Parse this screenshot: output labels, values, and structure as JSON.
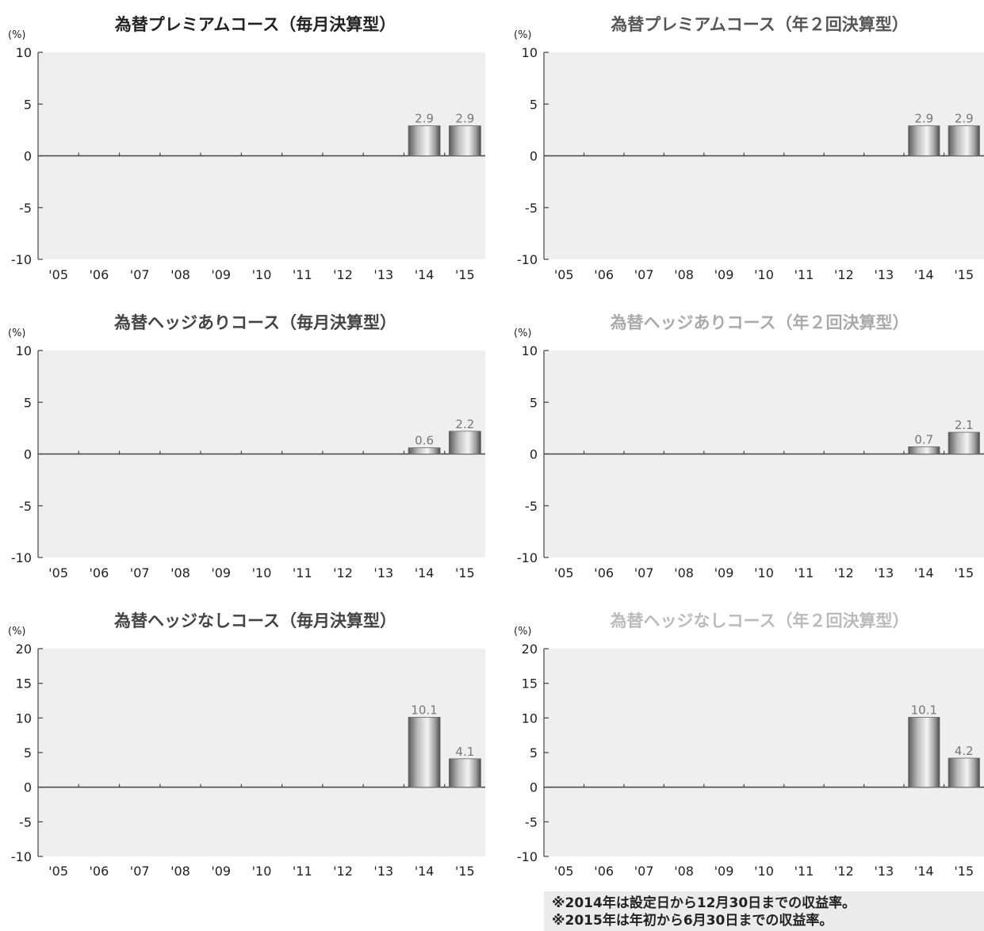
{
  "chart_data": [
    {
      "type": "bar",
      "title": "為替プレミアムコース（毎月決算型）",
      "ylabel": "(%)",
      "categories": [
        "'05",
        "'06",
        "'07",
        "'08",
        "'09",
        "'10",
        "'11",
        "'12",
        "'13",
        "'14",
        "'15"
      ],
      "values": [
        null,
        null,
        null,
        null,
        null,
        null,
        null,
        null,
        null,
        2.9,
        2.9
      ],
      "value_labels": [
        "",
        "",
        "",
        "",
        "",
        "",
        "",
        "",
        "",
        "2.9",
        "2.9"
      ],
      "ylim": [
        -10,
        10
      ],
      "yticks": [
        10,
        5,
        0,
        -5,
        -10
      ],
      "title_color": "#222222"
    },
    {
      "type": "bar",
      "title": "為替プレミアムコース（年２回決算型）",
      "ylabel": "(%)",
      "categories": [
        "'05",
        "'06",
        "'07",
        "'08",
        "'09",
        "'10",
        "'11",
        "'12",
        "'13",
        "'14",
        "'15"
      ],
      "values": [
        null,
        null,
        null,
        null,
        null,
        null,
        null,
        null,
        null,
        2.9,
        2.9
      ],
      "value_labels": [
        "",
        "",
        "",
        "",
        "",
        "",
        "",
        "",
        "",
        "2.9",
        "2.9"
      ],
      "ylim": [
        -10,
        10
      ],
      "yticks": [
        10,
        5,
        0,
        -5,
        -10
      ],
      "title_color": "#555555"
    },
    {
      "type": "bar",
      "title": "為替ヘッジありコース（毎月決算型）",
      "ylabel": "(%)",
      "categories": [
        "'05",
        "'06",
        "'07",
        "'08",
        "'09",
        "'10",
        "'11",
        "'12",
        "'13",
        "'14",
        "'15"
      ],
      "values": [
        null,
        null,
        null,
        null,
        null,
        null,
        null,
        null,
        null,
        0.6,
        2.2
      ],
      "value_labels": [
        "",
        "",
        "",
        "",
        "",
        "",
        "",
        "",
        "",
        "0.6",
        "2.2"
      ],
      "ylim": [
        -10,
        10
      ],
      "yticks": [
        10,
        5,
        0,
        -5,
        -10
      ],
      "title_color": "#444444"
    },
    {
      "type": "bar",
      "title": "為替ヘッジありコース（年２回決算型）",
      "ylabel": "(%)",
      "categories": [
        "'05",
        "'06",
        "'07",
        "'08",
        "'09",
        "'10",
        "'11",
        "'12",
        "'13",
        "'14",
        "'15"
      ],
      "values": [
        null,
        null,
        null,
        null,
        null,
        null,
        null,
        null,
        null,
        0.7,
        2.1
      ],
      "value_labels": [
        "",
        "",
        "",
        "",
        "",
        "",
        "",
        "",
        "",
        "0.7",
        "2.1"
      ],
      "ylim": [
        -10,
        10
      ],
      "yticks": [
        10,
        5,
        0,
        -5,
        -10
      ],
      "title_color": "#aaaaaa"
    },
    {
      "type": "bar",
      "title": "為替ヘッジなしコース（毎月決算型）",
      "ylabel": "(%)",
      "categories": [
        "'05",
        "'06",
        "'07",
        "'08",
        "'09",
        "'10",
        "'11",
        "'12",
        "'13",
        "'14",
        "'15"
      ],
      "values": [
        null,
        null,
        null,
        null,
        null,
        null,
        null,
        null,
        null,
        10.1,
        4.1
      ],
      "value_labels": [
        "",
        "",
        "",
        "",
        "",
        "",
        "",
        "",
        "",
        "10.1",
        "4.1"
      ],
      "ylim": [
        -10,
        20
      ],
      "yticks": [
        20,
        15,
        10,
        5,
        0,
        -5,
        -10
      ],
      "title_color": "#444444"
    },
    {
      "type": "bar",
      "title": "為替ヘッジなしコース（年２回決算型）",
      "ylabel": "(%)",
      "categories": [
        "'05",
        "'06",
        "'07",
        "'08",
        "'09",
        "'10",
        "'11",
        "'12",
        "'13",
        "'14",
        "'15"
      ],
      "values": [
        null,
        null,
        null,
        null,
        null,
        null,
        null,
        null,
        null,
        10.1,
        4.2
      ],
      "value_labels": [
        "",
        "",
        "",
        "",
        "",
        "",
        "",
        "",
        "",
        "10.1",
        "4.2"
      ],
      "ylim": [
        -10,
        20
      ],
      "yticks": [
        20,
        15,
        10,
        5,
        0,
        -5,
        -10
      ],
      "title_color": "#bbbbbb"
    }
  ],
  "notes": [
    "※2014年は設定日から12月30日までの収益率。",
    "※2015年は年初から6月30日までの収益率。"
  ],
  "colors": {
    "plot_background": "#efefef",
    "bar_dark": "#555555",
    "bar_light": "#f2f2f2",
    "axis": "#444444",
    "tick_text": "#222222",
    "value_label": "#777777"
  }
}
